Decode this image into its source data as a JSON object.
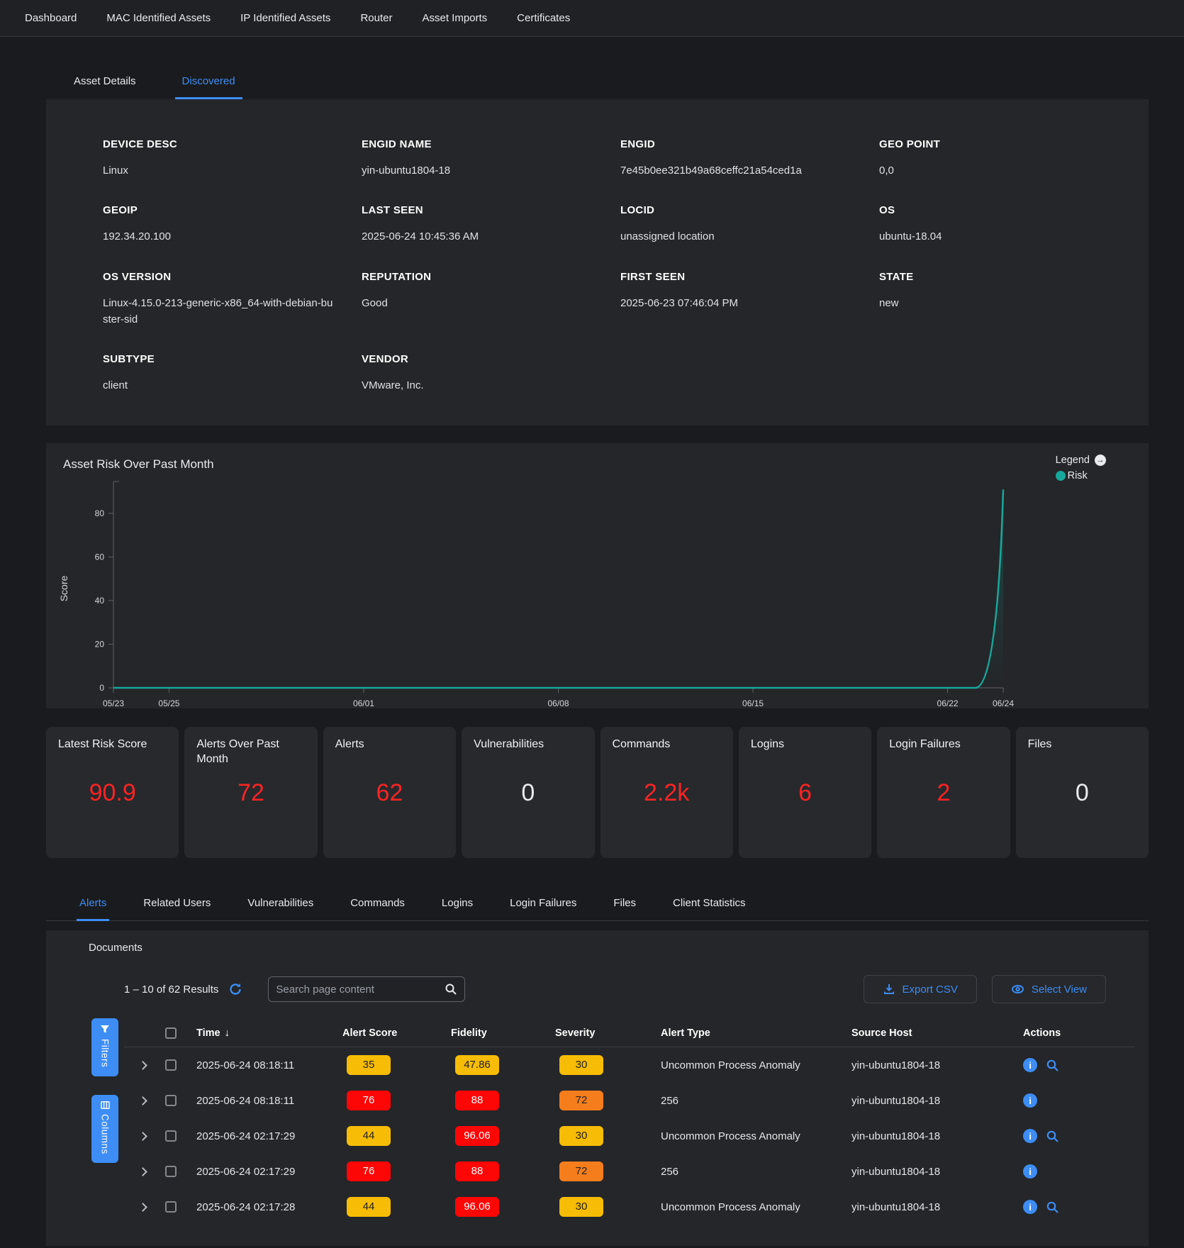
{
  "colors": {
    "accent_blue": "#3d8df5",
    "risk_teal": "#18a79b",
    "metric_red": "#fb2424",
    "badge_yellow": "#f7bc05",
    "badge_red": "#fd0606",
    "badge_orange": "#f57d1c"
  },
  "nav": {
    "items": [
      {
        "label": "Dashboard"
      },
      {
        "label": "MAC Identified Assets"
      },
      {
        "label": "IP Identified Assets"
      },
      {
        "label": "Router"
      },
      {
        "label": "Asset Imports"
      },
      {
        "label": "Certificates"
      }
    ]
  },
  "subtabs": [
    {
      "label": "Asset Details"
    },
    {
      "label": "Discovered",
      "state": "active"
    }
  ],
  "asset_details": {
    "fields": [
      {
        "label": "DEVICE DESC",
        "value": "Linux"
      },
      {
        "label": "ENGID NAME",
        "value": "yin-ubuntu1804-18"
      },
      {
        "label": "ENGID",
        "value": "7e45b0ee321b49a68ceffc21a54ced1a"
      },
      {
        "label": "GEO POINT",
        "value": "0,0"
      },
      {
        "label": "GEOIP",
        "value": "192.34.20.100"
      },
      {
        "label": "LAST SEEN",
        "value": "2025-06-24 10:45:36 AM"
      },
      {
        "label": "LOCID",
        "value": "unassigned location"
      },
      {
        "label": "OS",
        "value": "ubuntu-18.04"
      },
      {
        "label": "OS VERSION",
        "value": "Linux-4.15.0-213-generic-x86_64-with-debian-buster-sid"
      },
      {
        "label": "REPUTATION",
        "value": "Good"
      },
      {
        "label": "FIRST SEEN",
        "value": "2025-06-23 07:46:04 PM"
      },
      {
        "label": "STATE",
        "value": "new"
      },
      {
        "label": "SUBTYPE",
        "value": "client"
      },
      {
        "label": "VENDOR",
        "value": "VMware, Inc."
      }
    ]
  },
  "chart_data": {
    "type": "line",
    "title": "Asset Risk Over Past Month",
    "ylabel": "Score",
    "legend": {
      "title": "Legend",
      "series_label": "Risk"
    },
    "ylim": [
      0,
      92
    ],
    "yticks": [
      0,
      20,
      40,
      60,
      80
    ],
    "xticks": [
      {
        "label": "05/23",
        "pos": 0
      },
      {
        "label": "05/25",
        "pos": 0.0625
      },
      {
        "label": "06/01",
        "pos": 0.28125
      },
      {
        "label": "06/08",
        "pos": 0.5
      },
      {
        "label": "06/15",
        "pos": 0.71875
      },
      {
        "label": "06/22",
        "pos": 0.9375
      },
      {
        "label": "06/24",
        "pos": 1
      }
    ],
    "series": [
      {
        "name": "Risk",
        "x": [
          "05/23",
          "05/24",
          "05/25",
          "05/26",
          "05/27",
          "05/28",
          "05/29",
          "05/30",
          "05/31",
          "06/01",
          "06/02",
          "06/03",
          "06/04",
          "06/05",
          "06/06",
          "06/07",
          "06/08",
          "06/09",
          "06/10",
          "06/11",
          "06/12",
          "06/13",
          "06/14",
          "06/15",
          "06/16",
          "06/17",
          "06/18",
          "06/19",
          "06/20",
          "06/21",
          "06/22",
          "06/23",
          "06/24"
        ],
        "values": [
          0,
          0,
          0,
          0,
          0,
          0,
          0,
          0,
          0,
          0,
          0,
          0,
          0,
          0,
          0,
          0,
          0,
          0,
          0,
          0,
          0,
          0,
          0,
          0,
          0,
          0,
          0,
          0,
          0,
          0,
          0,
          0,
          90.9
        ]
      }
    ]
  },
  "stat_cards": [
    {
      "label": "Latest Risk Score",
      "value": "90.9",
      "color": "red"
    },
    {
      "label": "Alerts Over Past Month",
      "value": "72",
      "color": "red"
    },
    {
      "label": "Alerts",
      "value": "62",
      "color": "red"
    },
    {
      "label": "Vulnerabilities",
      "value": "0",
      "color": "white"
    },
    {
      "label": "Commands",
      "value": "2.2k",
      "color": "red"
    },
    {
      "label": "Logins",
      "value": "6",
      "color": "red"
    },
    {
      "label": "Login Failures",
      "value": "2",
      "color": "red"
    },
    {
      "label": "Files",
      "value": "0",
      "color": "white"
    }
  ],
  "tabs": [
    {
      "label": "Alerts",
      "state": "active"
    },
    {
      "label": "Related Users"
    },
    {
      "label": "Vulnerabilities"
    },
    {
      "label": "Commands"
    },
    {
      "label": "Logins"
    },
    {
      "label": "Login Failures"
    },
    {
      "label": "Files"
    },
    {
      "label": "Client Statistics"
    }
  ],
  "documents": {
    "heading": "Documents",
    "results_text": "1 – 10 of 62 Results",
    "search_placeholder": "Search page content",
    "export_button": "Export CSV",
    "select_view_button": "Select View",
    "filters_button": "Filters",
    "columns_button": "Columns",
    "table": {
      "headers": {
        "time": "Time",
        "score": "Alert Score",
        "fidelity": "Fidelity",
        "severity": "Severity",
        "type": "Alert Type",
        "host": "Source Host",
        "actions": "Actions"
      },
      "rows": [
        {
          "time": "2025-06-24 08:18:11",
          "score": "35",
          "score_color": "yellow",
          "fidelity": "47.86",
          "fidelity_color": "yellow",
          "severity": "30",
          "severity_color": "yellow",
          "type": "Uncommon Process Anomaly",
          "host": "yin-ubuntu1804-18",
          "search": true
        },
        {
          "time": "2025-06-24 08:18:11",
          "score": "76",
          "score_color": "red",
          "fidelity": "88",
          "fidelity_color": "red",
          "severity": "72",
          "severity_color": "orange",
          "type": "256",
          "host": "yin-ubuntu1804-18",
          "search": false
        },
        {
          "time": "2025-06-24 02:17:29",
          "score": "44",
          "score_color": "yellow",
          "fidelity": "96.06",
          "fidelity_color": "red",
          "severity": "30",
          "severity_color": "yellow",
          "type": "Uncommon Process Anomaly",
          "host": "yin-ubuntu1804-18",
          "search": true
        },
        {
          "time": "2025-06-24 02:17:29",
          "score": "76",
          "score_color": "red",
          "fidelity": "88",
          "fidelity_color": "red",
          "severity": "72",
          "severity_color": "orange",
          "type": "256",
          "host": "yin-ubuntu1804-18",
          "search": false
        },
        {
          "time": "2025-06-24 02:17:28",
          "score": "44",
          "score_color": "yellow",
          "fidelity": "96.06",
          "fidelity_color": "red",
          "severity": "30",
          "severity_color": "yellow",
          "type": "Uncommon Process Anomaly",
          "host": "yin-ubuntu1804-18",
          "search": true
        }
      ]
    }
  }
}
